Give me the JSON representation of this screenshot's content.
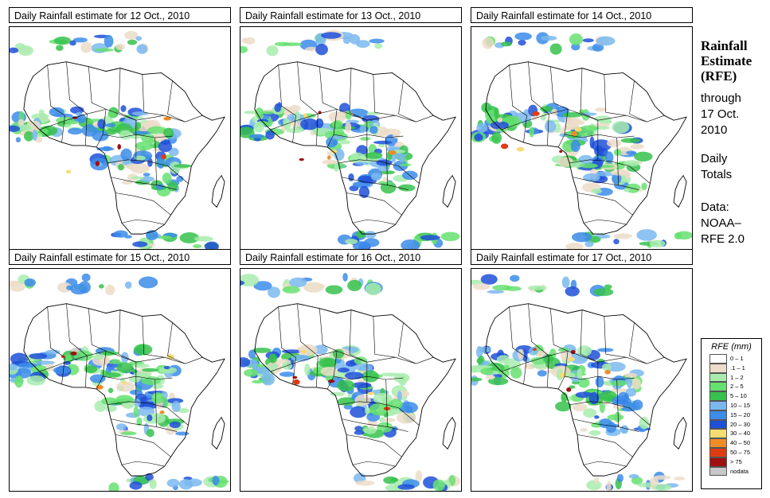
{
  "panels": [
    {
      "title": "Daily Rainfall estimate for  12 Oct., 2010"
    },
    {
      "title": "Daily Rainfall estimate for  13 Oct., 2010"
    },
    {
      "title": "Daily Rainfall estimate for  14 Oct., 2010"
    },
    {
      "title": "Daily Rainfall estimate for  15 Oct., 2010"
    },
    {
      "title": "Daily Rainfall estimate for  16 Oct., 2010"
    },
    {
      "title": "Daily Rainfall estimate for  17 Oct., 2010"
    }
  ],
  "sidebar": {
    "heading_line1": "Rainfall",
    "heading_line2": "Estimate",
    "heading_line3": "(RFE)",
    "through": "through",
    "date_line1": "17 Oct.",
    "date_line2": "2010",
    "daily": "Daily",
    "totals": "Totals",
    "data_label": "Data:",
    "source_line1": "NOAA–",
    "source_line2": "RFE 2.0"
  },
  "legend": {
    "title": "RFE (mm)",
    "items": [
      {
        "label": "0 – 1",
        "color": "#ffffff"
      },
      {
        "label": ".1 – 1",
        "color": "#ecdcc8"
      },
      {
        "label": "1 – 2",
        "color": "#a8ecae"
      },
      {
        "label": "2 – 5",
        "color": "#66e070"
      },
      {
        "label": "5 – 10",
        "color": "#36c24c"
      },
      {
        "label": "10 – 15",
        "color": "#7ab8f0"
      },
      {
        "label": "15 – 20",
        "color": "#3c8cea"
      },
      {
        "label": "20 – 30",
        "color": "#1e50d8"
      },
      {
        "label": "30 – 40",
        "color": "#f6dc72"
      },
      {
        "label": "40 – 50",
        "color": "#f08c28"
      },
      {
        "label": "50 – 75",
        "color": "#e03c14"
      },
      {
        "label": "> 75",
        "color": "#a01010"
      },
      {
        "label": "nodata",
        "color": "#c8c8c8"
      }
    ]
  }
}
